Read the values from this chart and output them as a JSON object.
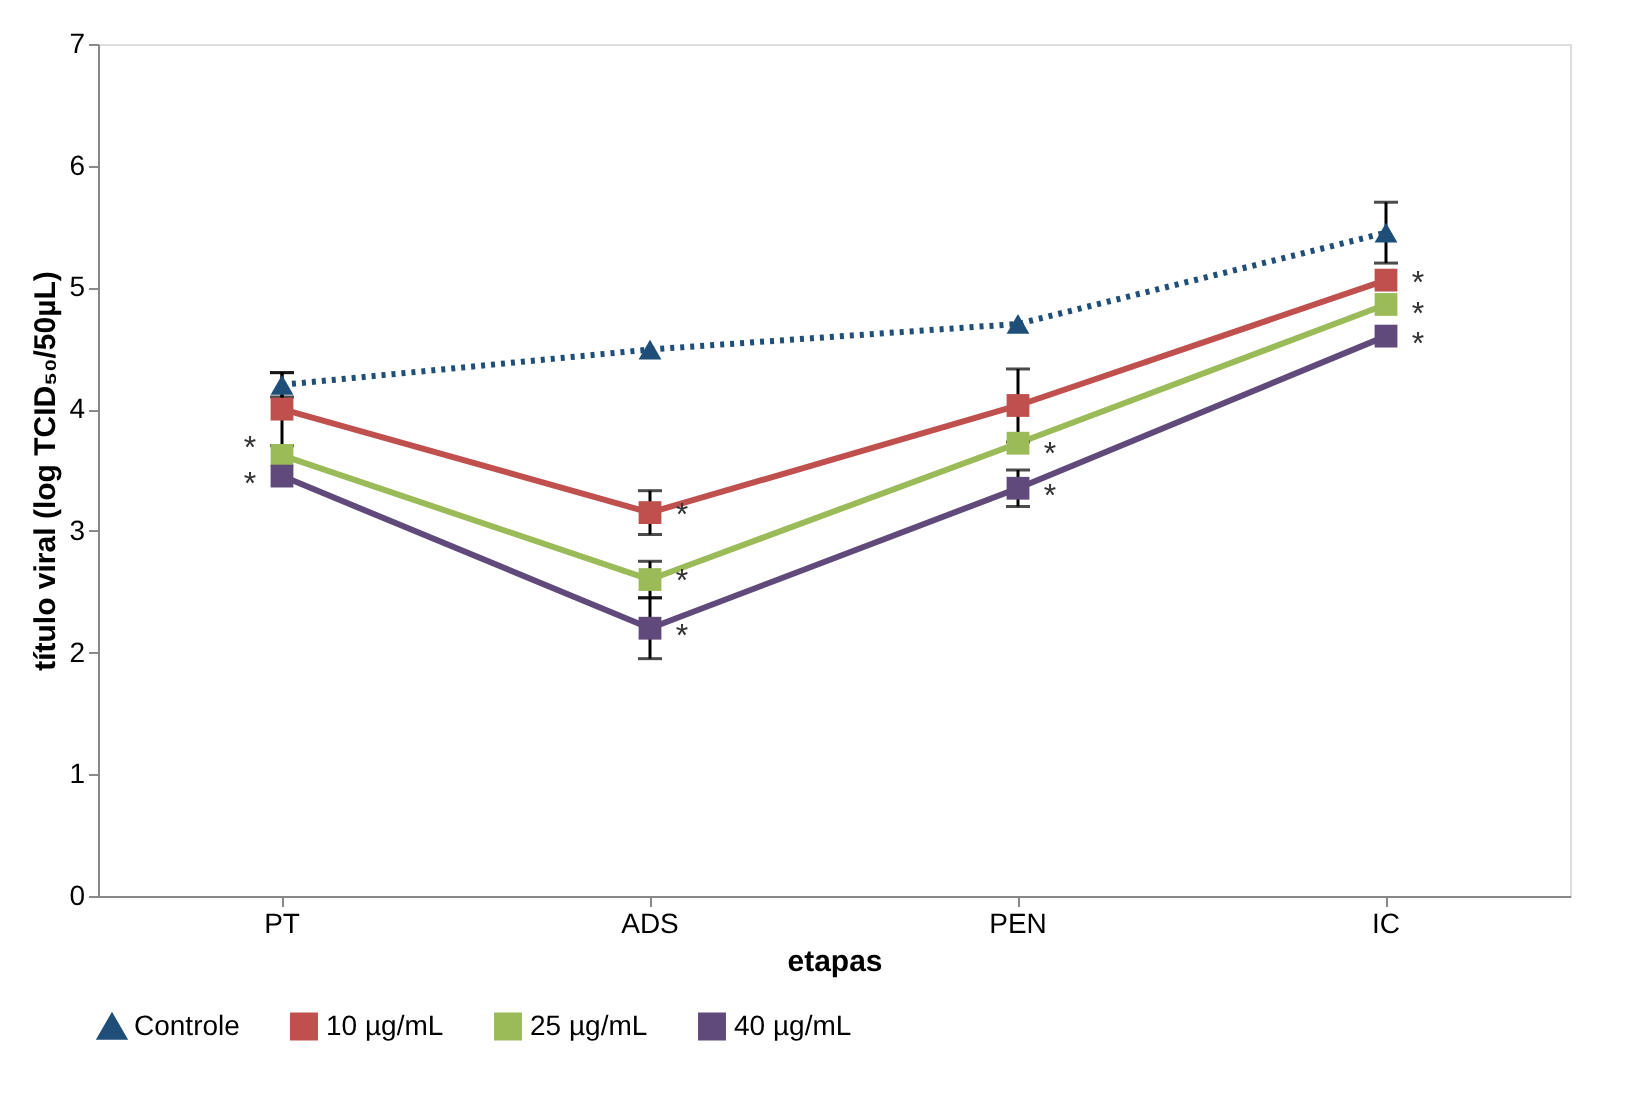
{
  "chart_data": {
    "type": "line",
    "xlabel": "etapas",
    "ylabel": "título viral (log TCID₅₀/50µL)",
    "categories": [
      "PT",
      "ADS",
      "PEN",
      "IC"
    ],
    "ylim": [
      0,
      7
    ],
    "yticks": [
      0,
      1,
      2,
      3,
      4,
      5,
      6,
      7
    ],
    "grid": false,
    "legend": "bottom",
    "series": [
      {
        "name": "Controle",
        "color": "#1f4e79",
        "values": [
          4.2,
          4.49,
          4.7,
          5.45
        ],
        "errors": [
          0.1,
          null,
          null,
          0.25
        ],
        "marker": "triangle",
        "line_style": "dotted"
      },
      {
        "name": "10 µg/mL",
        "color": "#c0504d",
        "values": [
          4.0,
          3.15,
          4.03,
          5.06
        ],
        "errors": [
          0.3,
          0.18,
          0.3,
          null
        ],
        "marker": "square",
        "line_style": "solid"
      },
      {
        "name": "25 µg/mL",
        "color": "#9bbb59",
        "values": [
          3.62,
          2.6,
          3.72,
          4.86
        ],
        "errors": [
          null,
          0.15,
          null,
          null
        ],
        "marker": "square",
        "line_style": "solid"
      },
      {
        "name": "40 µg/mL",
        "color": "#604a7b",
        "values": [
          3.45,
          2.2,
          3.35,
          4.6
        ],
        "errors": [
          null,
          0.25,
          0.15,
          null
        ],
        "marker": "square",
        "line_style": "solid"
      }
    ],
    "annotations": [
      {
        "text": "*",
        "x": "PT",
        "y": 3.75
      },
      {
        "text": "*",
        "x": "PT",
        "y": 3.45
      },
      {
        "text": "*",
        "x": "ADS",
        "y": 3.2
      },
      {
        "text": "*",
        "x": "ADS",
        "y": 2.65
      },
      {
        "text": "*",
        "x": "ADS",
        "y": 2.2
      },
      {
        "text": "*",
        "x": "PEN",
        "y": 3.7
      },
      {
        "text": "*",
        "x": "PEN",
        "y": 3.35
      },
      {
        "text": "*",
        "x": "IC",
        "y": 5.1
      },
      {
        "text": "*",
        "x": "IC",
        "y": 4.85
      },
      {
        "text": "*",
        "x": "IC",
        "y": 4.6
      }
    ]
  }
}
